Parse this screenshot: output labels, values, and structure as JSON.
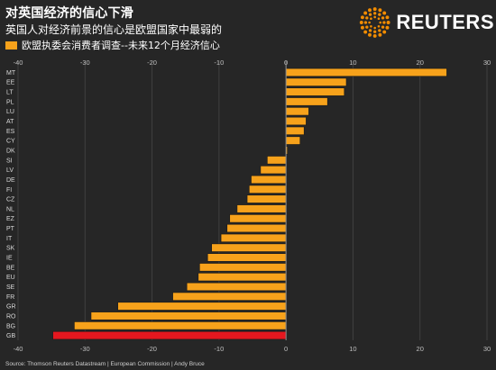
{
  "title": "对英国经济的信心下滑",
  "subtitle": "英国人对经济前景的信心是欧盟国家中最弱的",
  "legend_label": "欧盟执委会消费者调查--未来12个月经济信心",
  "logo_text": "REUTERS",
  "source": "Source: Thomson Reuters Datastream | European Commission | Andy Bruce",
  "colors": {
    "background": "#262626",
    "bar": "#f7a21b",
    "highlight": "#e5171f",
    "logo_accent": "#f28c00"
  },
  "chart_data": {
    "type": "bar",
    "orientation": "horizontal",
    "categories": [
      "MT",
      "EE",
      "LT",
      "PL",
      "LU",
      "AT",
      "ES",
      "CY",
      "DK",
      "SI",
      "LV",
      "DE",
      "FI",
      "CZ",
      "NL",
      "EZ",
      "PT",
      "IT",
      "SK",
      "IE",
      "BE",
      "EU",
      "SE",
      "FR",
      "GR",
      "RO",
      "BG",
      "GB"
    ],
    "values": [
      24,
      9,
      8.7,
      6.2,
      3.4,
      3.0,
      2.7,
      2.1,
      0.2,
      -2.8,
      -3.8,
      -5.2,
      -5.5,
      -5.8,
      -7.3,
      -8.4,
      -8.8,
      -9.7,
      -11.1,
      -11.7,
      -12.9,
      -13.1,
      -14.8,
      -16.9,
      -25.1,
      -29.1,
      -31.6,
      -34.8
    ],
    "highlight_category": "GB",
    "xlim": [
      -40,
      30
    ],
    "xticks": [
      -40,
      -30,
      -20,
      -10,
      0,
      10,
      20,
      30
    ],
    "title": "对英国经济的信心下滑",
    "xlabel": "",
    "ylabel": "",
    "grid": true,
    "legend": "top-left"
  }
}
